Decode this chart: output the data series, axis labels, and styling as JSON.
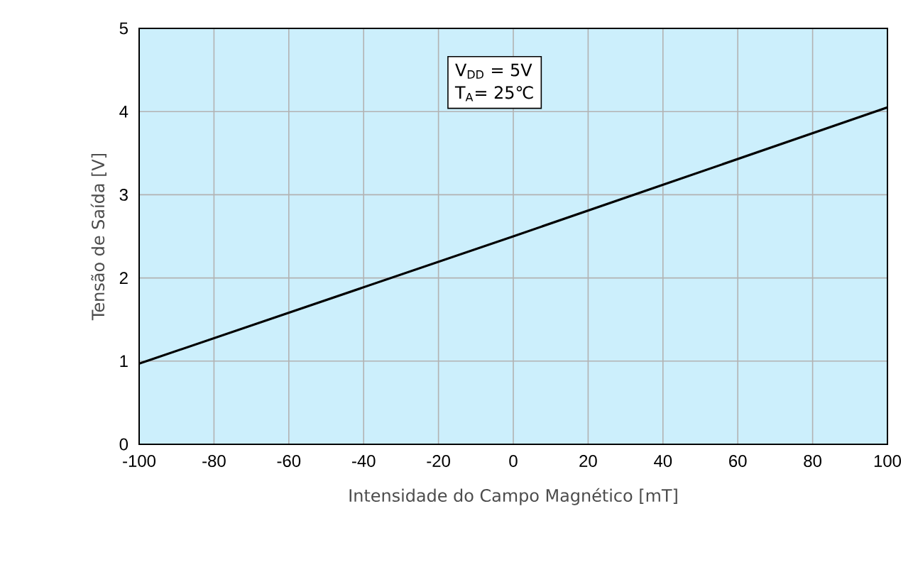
{
  "chart_data": {
    "type": "line",
    "xlabel": "Intensidade do Campo Magnético [mT]",
    "ylabel": "Tensão de Saída [V]",
    "x": [
      -100,
      0,
      100
    ],
    "series": [
      {
        "color": "#000000",
        "values": [
          0.97,
          2.5,
          4.05
        ]
      }
    ],
    "xlim": [
      -100,
      100
    ],
    "xticks": [
      -100,
      -80,
      -60,
      -40,
      -20,
      0,
      20,
      40,
      60,
      80,
      100
    ],
    "ylim": [
      0,
      5
    ],
    "yticks": [
      0,
      1,
      2,
      3,
      4,
      5
    ],
    "grid": true,
    "marker": "none",
    "line_style": "solid",
    "annotations": [
      "V$_{DD}$ = 5V",
      "T$_{A}$= 25℃"
    ]
  }
}
